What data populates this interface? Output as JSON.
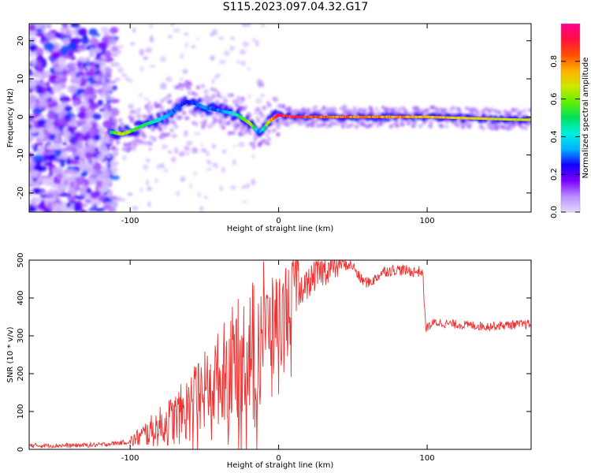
{
  "title": "S115.2023.097.04.32.G17",
  "chart_data": [
    {
      "type": "heatmap",
      "xlabel": "Height of straight line (km)",
      "ylabel": "Frequency (Hz)",
      "xlim": [
        -168,
        170
      ],
      "ylim": [
        -25,
        24.5
      ],
      "x_ticks": [
        -100,
        0,
        100
      ],
      "y_ticks": [
        -20,
        -10,
        0,
        10,
        20
      ],
      "colorbar": {
        "label": "Normalized spectral amplitude",
        "range": [
          0.0,
          1.0
        ],
        "ticks": [
          0.0,
          0.2,
          0.4,
          0.6,
          0.8
        ],
        "colors": [
          "#e6d9ff",
          "#b98cff",
          "#7a00ff",
          "#1400ff",
          "#00b0ff",
          "#00f0e0",
          "#00e060",
          "#60f000",
          "#d0e800",
          "#ffb000",
          "#ff5000",
          "#ff1040",
          "#ff0090"
        ]
      },
      "ridge": {
        "x": [
          -113,
          -105,
          -98,
          -90,
          -82,
          -74,
          -68,
          -62,
          -56,
          -50,
          -44,
          -38,
          -32,
          -28,
          -24,
          -20,
          -16,
          -13,
          -10,
          -6,
          0,
          10,
          30,
          60,
          100,
          140,
          170
        ],
        "freq": [
          -4,
          -4.5,
          -3.5,
          -2,
          -1,
          0.5,
          2.5,
          4,
          3.5,
          2.5,
          2,
          1.5,
          1,
          0.5,
          -0.5,
          -1.5,
          -3,
          -4,
          -3,
          -1,
          0.5,
          0,
          0,
          0,
          0,
          -0.5,
          -0.8
        ],
        "amplitude": [
          0.5,
          0.75,
          0.6,
          0.55,
          0.45,
          0.35,
          0.3,
          0.28,
          0.3,
          0.35,
          0.3,
          0.35,
          0.4,
          0.5,
          0.6,
          0.75,
          0.5,
          0.3,
          0.5,
          0.8,
          0.95,
          0.95,
          0.9,
          0.85,
          0.8,
          0.75,
          0.7
        ]
      }
    },
    {
      "type": "line",
      "xlabel": "Height of straight line (km)",
      "ylabel": "SNR (10 * v/v)",
      "xlim": [
        -168,
        170
      ],
      "ylim": [
        0,
        500
      ],
      "x_ticks": [
        -100,
        0,
        100
      ],
      "y_ticks": [
        0,
        100,
        200,
        300,
        400,
        500
      ],
      "color": "#ef3232",
      "series": [
        {
          "x": [
            -168,
            -140,
            -120,
            -100,
            -90,
            -80,
            -70,
            -60,
            -50,
            -40,
            -30,
            -20,
            -15,
            -10,
            -5,
            0,
            5,
            10,
            15,
            20,
            25,
            30,
            40,
            50,
            55,
            60,
            65,
            70,
            80,
            90,
            97,
            99,
            105,
            120,
            140,
            160,
            170
          ],
          "y": [
            10,
            10,
            12,
            20,
            40,
            60,
            80,
            110,
            150,
            190,
            240,
            260,
            300,
            330,
            330,
            350,
            380,
            400,
            420,
            440,
            460,
            470,
            490,
            485,
            450,
            440,
            450,
            470,
            475,
            470,
            470,
            320,
            335,
            330,
            325,
            330,
            330
          ]
        }
      ]
    }
  ]
}
